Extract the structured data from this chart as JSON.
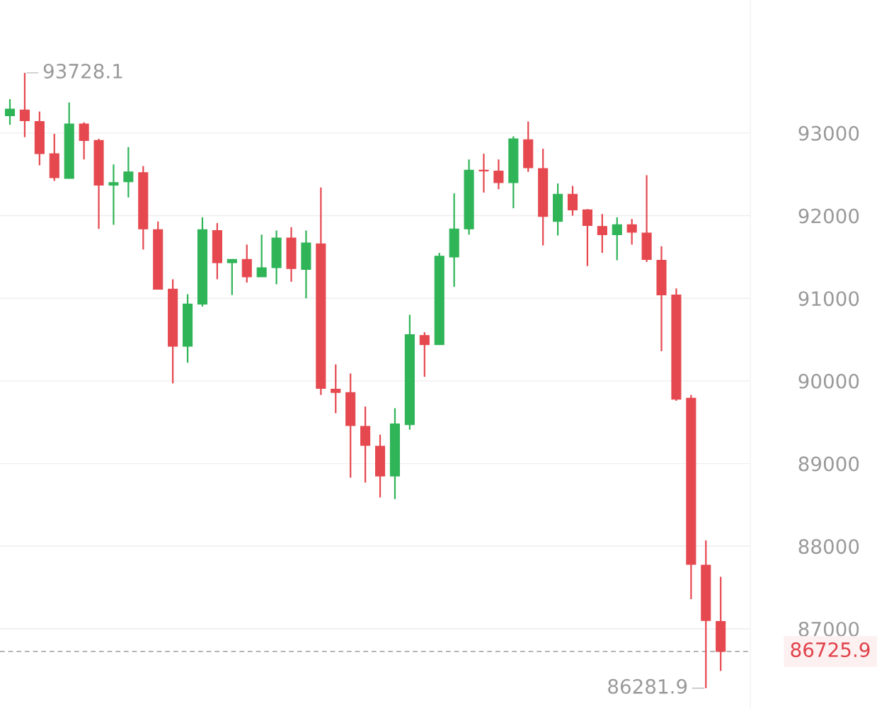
{
  "chart_data": {
    "type": "candlestick",
    "categories": [
      null,
      null,
      null,
      null,
      null,
      null,
      null,
      null,
      null,
      null,
      null,
      null,
      null,
      null,
      null,
      null,
      null,
      null,
      null,
      null,
      null,
      null,
      null,
      null,
      null,
      null,
      null,
      null,
      null,
      null,
      null,
      null,
      null,
      null,
      null,
      null,
      null,
      null,
      null,
      null,
      null,
      null,
      null,
      null,
      null,
      null,
      null,
      null,
      null
    ],
    "ohlc": [
      [
        93210,
        93410,
        93100,
        93290
      ],
      [
        93280,
        93728.1,
        92950,
        93150
      ],
      [
        93140,
        93260,
        92610,
        92750
      ],
      [
        92750,
        92990,
        92420,
        92460
      ],
      [
        92450,
        93370,
        92450,
        93110
      ],
      [
        93110,
        93130,
        92680,
        92910
      ],
      [
        92910,
        92930,
        91840,
        92370
      ],
      [
        92370,
        92620,
        91890,
        92400
      ],
      [
        92410,
        92830,
        92220,
        92530
      ],
      [
        92520,
        92600,
        91590,
        91840
      ],
      [
        91830,
        91930,
        91110,
        91110
      ],
      [
        91110,
        91230,
        89970,
        90420
      ],
      [
        90420,
        91050,
        90220,
        90930
      ],
      [
        90930,
        91980,
        90900,
        91830
      ],
      [
        91820,
        91910,
        91230,
        91430
      ],
      [
        91430,
        91470,
        91040,
        91470
      ],
      [
        91470,
        91650,
        91190,
        91260
      ],
      [
        91260,
        91770,
        91260,
        91370
      ],
      [
        91370,
        91820,
        91170,
        91730
      ],
      [
        91730,
        91860,
        91200,
        91360
      ],
      [
        91350,
        91820,
        91000,
        91670
      ],
      [
        91660,
        92340,
        89830,
        89910
      ],
      [
        89900,
        90200,
        89610,
        89860
      ],
      [
        89860,
        90090,
        88830,
        89460
      ],
      [
        89450,
        89690,
        88770,
        89220
      ],
      [
        89210,
        89350,
        88590,
        88850
      ],
      [
        88850,
        89670,
        88570,
        89480
      ],
      [
        89470,
        90800,
        89410,
        90560
      ],
      [
        90550,
        90590,
        90050,
        90440
      ],
      [
        90440,
        91550,
        90440,
        91510
      ],
      [
        91500,
        92270,
        91140,
        91840
      ],
      [
        91840,
        92680,
        91770,
        92550
      ],
      [
        92550,
        92750,
        92280,
        92540
      ],
      [
        92540,
        92680,
        92320,
        92400
      ],
      [
        92400,
        92960,
        92090,
        92930
      ],
      [
        92920,
        93140,
        92530,
        92580
      ],
      [
        92570,
        92810,
        91640,
        91990
      ],
      [
        91930,
        92390,
        91760,
        92260
      ],
      [
        92260,
        92360,
        92000,
        92070
      ],
      [
        92070,
        92080,
        91390,
        91880
      ],
      [
        91870,
        92020,
        91550,
        91770
      ],
      [
        91770,
        91980,
        91460,
        91890
      ],
      [
        91890,
        91960,
        91650,
        91800
      ],
      [
        91790,
        92490,
        91440,
        91470
      ],
      [
        91460,
        91630,
        90360,
        91040
      ],
      [
        91040,
        91120,
        89760,
        89780
      ],
      [
        89790,
        89830,
        87360,
        87780
      ],
      [
        87770,
        88070,
        86281.9,
        87100
      ],
      [
        87090,
        87630,
        86490,
        86725.9
      ]
    ],
    "colors": [
      "#2fb457",
      "#e5484f",
      "#e5484f",
      "#e5484f",
      "#2fb457",
      "#e5484f",
      "#e5484f",
      "#2fb457",
      "#2fb457",
      "#e5484f",
      "#e5484f",
      "#e5484f",
      "#2fb457",
      "#2fb457",
      "#e5484f",
      "#2fb457",
      "#e5484f",
      "#2fb457",
      "#2fb457",
      "#e5484f",
      "#2fb457",
      "#e5484f",
      "#e5484f",
      "#e5484f",
      "#e5484f",
      "#e5484f",
      "#2fb457",
      "#2fb457",
      "#e5484f",
      "#2fb457",
      "#2fb457",
      "#2fb457",
      "#e5484f",
      "#e5484f",
      "#2fb457",
      "#e5484f",
      "#e5484f",
      "#2fb457",
      "#e5484f",
      "#e5484f",
      "#e5484f",
      "#2fb457",
      "#e5484f",
      "#e5484f",
      "#e5484f",
      "#e5484f",
      "#e5484f",
      "#e5484f",
      "#e5484f"
    ],
    "ylim": [
      86040,
      94610
    ],
    "yticks": [
      87000,
      88000,
      89000,
      90000,
      91000,
      92000,
      93000
    ],
    "grid": "y",
    "tick_labels": "y",
    "ref_lines": [
      {
        "axis": "y",
        "value": 86725.9,
        "label": "86725.9",
        "color": "#aaaaaa",
        "line_style": "dashed"
      }
    ],
    "annotations": [
      "93728.1",
      "86281.9"
    ]
  }
}
